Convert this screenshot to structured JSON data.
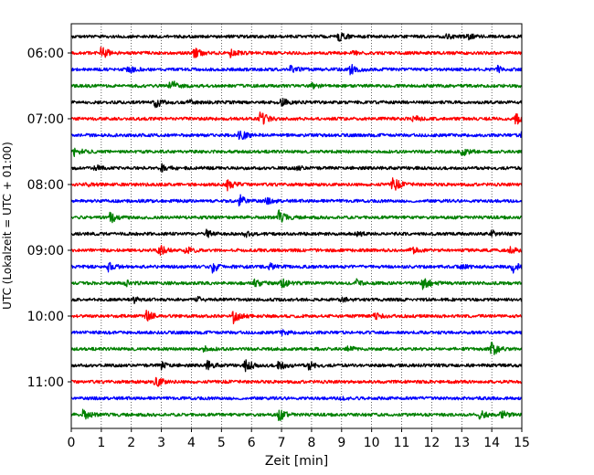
{
  "chart_data": {
    "type": "line",
    "title": "",
    "xlabel": "Zeit  [min]",
    "ylabel": "UTC (Lokalzeit = UTC + 01:00)",
    "xlim": [
      0,
      15
    ],
    "x_ticks": [
      "0",
      "1",
      "2",
      "3",
      "4",
      "5",
      "6",
      "7",
      "8",
      "9",
      "10",
      "11",
      "12",
      "13",
      "14",
      "15"
    ],
    "y_ticks": [
      "06:00",
      "07:00",
      "08:00",
      "09:00",
      "10:00",
      "11:00"
    ],
    "grid": "vertical dotted",
    "colors": [
      "#000000",
      "#ff0000",
      "#0000ff",
      "#008000"
    ],
    "series": [
      {
        "start": "05:45",
        "color": "#000000",
        "events": [
          [
            8.9,
            2.6
          ],
          [
            13.2,
            1.3
          ],
          [
            12.5,
            1.0
          ]
        ]
      },
      {
        "start": "06:00",
        "color": "#ff0000",
        "events": [
          [
            1.0,
            3.2
          ],
          [
            4.1,
            2.2
          ],
          [
            5.3,
            1.6
          ],
          [
            9.3,
            1.0
          ]
        ]
      },
      {
        "start": "06:15",
        "color": "#0000ff",
        "events": [
          [
            9.3,
            2.6
          ],
          [
            1.9,
            1.6
          ],
          [
            7.3,
            1.5
          ],
          [
            14.2,
            1.2
          ]
        ]
      },
      {
        "start": "06:30",
        "color": "#008000",
        "events": [
          [
            3.3,
            3.0
          ],
          [
            8.0,
            1.0
          ]
        ]
      },
      {
        "start": "06:45",
        "color": "#000000",
        "events": [
          [
            2.8,
            2.8
          ],
          [
            7.0,
            1.8
          ],
          [
            3.9,
            1.0
          ]
        ]
      },
      {
        "start": "07:00",
        "color": "#ff0000",
        "events": [
          [
            6.3,
            3.3
          ],
          [
            11.4,
            1.6
          ],
          [
            14.8,
            2.4
          ]
        ]
      },
      {
        "start": "07:15",
        "color": "#0000ff",
        "events": [
          [
            5.6,
            2.8
          ],
          [
            15.0,
            3.2
          ]
        ]
      },
      {
        "start": "07:30",
        "color": "#008000",
        "events": [
          [
            0.1,
            2.0
          ],
          [
            13.0,
            2.0
          ]
        ]
      },
      {
        "start": "07:45",
        "color": "#000000",
        "events": [
          [
            3.0,
            2.4
          ],
          [
            0.8,
            1.2
          ],
          [
            7.5,
            1.0
          ]
        ]
      },
      {
        "start": "08:00",
        "color": "#ff0000",
        "events": [
          [
            10.7,
            3.4
          ],
          [
            5.2,
            2.3
          ],
          [
            0.5,
            1.0
          ]
        ]
      },
      {
        "start": "08:15",
        "color": "#0000ff",
        "events": [
          [
            5.6,
            2.8
          ],
          [
            6.5,
            1.2
          ]
        ]
      },
      {
        "start": "08:30",
        "color": "#008000",
        "events": [
          [
            1.3,
            2.4
          ],
          [
            6.9,
            3.0
          ]
        ]
      },
      {
        "start": "08:45",
        "color": "#000000",
        "events": [
          [
            4.5,
            1.6
          ],
          [
            5.8,
            1.3
          ],
          [
            14.0,
            1.5
          ],
          [
            9.5,
            1.0
          ]
        ]
      },
      {
        "start": "09:00",
        "color": "#ff0000",
        "events": [
          [
            2.9,
            2.6
          ],
          [
            3.8,
            1.6
          ],
          [
            11.3,
            1.6
          ],
          [
            14.6,
            1.4
          ]
        ]
      },
      {
        "start": "09:15",
        "color": "#0000ff",
        "events": [
          [
            1.2,
            2.2
          ],
          [
            4.7,
            2.4
          ],
          [
            14.7,
            2.4
          ],
          [
            6.6,
            1.3
          ],
          [
            13.0,
            1.2
          ]
        ]
      },
      {
        "start": "09:30",
        "color": "#008000",
        "events": [
          [
            11.7,
            3.6
          ],
          [
            6.1,
            1.6
          ],
          [
            7.0,
            2.0
          ],
          [
            9.5,
            1.4
          ],
          [
            1.8,
            1.3
          ]
        ]
      },
      {
        "start": "09:45",
        "color": "#000000",
        "events": [
          [
            2.1,
            1.3
          ],
          [
            4.2,
            1.0
          ],
          [
            9.0,
            1.0
          ]
        ]
      },
      {
        "start": "10:00",
        "color": "#ff0000",
        "events": [
          [
            2.5,
            2.4
          ],
          [
            5.4,
            2.8
          ],
          [
            10.1,
            1.4
          ]
        ]
      },
      {
        "start": "10:15",
        "color": "#0000ff",
        "events": [
          [
            7.0,
            1.0
          ]
        ]
      },
      {
        "start": "10:30",
        "color": "#008000",
        "events": [
          [
            14.0,
            3.4
          ],
          [
            4.4,
            1.2
          ],
          [
            9.2,
            1.0
          ]
        ]
      },
      {
        "start": "10:45",
        "color": "#000000",
        "events": [
          [
            5.8,
            2.8
          ],
          [
            6.9,
            2.4
          ],
          [
            4.5,
            2.0
          ],
          [
            7.9,
            1.8
          ],
          [
            3.0,
            1.6
          ]
        ]
      },
      {
        "start": "11:00",
        "color": "#ff0000",
        "events": [
          [
            2.8,
            3.0
          ]
        ]
      },
      {
        "start": "11:15",
        "color": "#0000ff",
        "events": [
          [
            9.0,
            0.8
          ]
        ]
      },
      {
        "start": "11:30",
        "color": "#008000",
        "events": [
          [
            0.4,
            2.4
          ],
          [
            6.9,
            2.8
          ],
          [
            13.6,
            2.0
          ],
          [
            14.3,
            2.0
          ]
        ]
      }
    ]
  }
}
